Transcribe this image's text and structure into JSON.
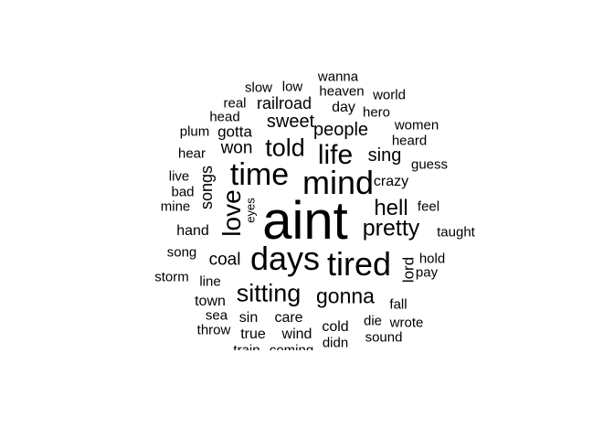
{
  "words": [
    {
      "text": "aint",
      "vertical": false
    },
    {
      "text": "mind",
      "vertical": false
    },
    {
      "text": "days",
      "vertical": false
    },
    {
      "text": "tired",
      "vertical": false
    },
    {
      "text": "time",
      "vertical": false
    },
    {
      "text": "life",
      "vertical": false
    },
    {
      "text": "love",
      "vertical": true
    },
    {
      "text": "told",
      "vertical": false
    },
    {
      "text": "pretty",
      "vertical": false
    },
    {
      "text": "sitting",
      "vertical": false
    },
    {
      "text": "gonna",
      "vertical": false
    },
    {
      "text": "hell",
      "vertical": false
    },
    {
      "text": "people",
      "vertical": false
    },
    {
      "text": "sing",
      "vertical": false
    },
    {
      "text": "sweet",
      "vertical": false
    },
    {
      "text": "won",
      "vertical": false
    },
    {
      "text": "songs",
      "vertical": true
    },
    {
      "text": "coal",
      "vertical": false
    },
    {
      "text": "railroad",
      "vertical": false
    },
    {
      "text": "gotta",
      "vertical": false
    },
    {
      "text": "lord",
      "vertical": true
    },
    {
      "text": "crazy",
      "vertical": false
    },
    {
      "text": "hand",
      "vertical": false
    },
    {
      "text": "town",
      "vertical": false
    },
    {
      "text": "care",
      "vertical": false
    },
    {
      "text": "cold",
      "vertical": false
    },
    {
      "text": "wind",
      "vertical": false
    },
    {
      "text": "true",
      "vertical": false
    },
    {
      "text": "sin",
      "vertical": false
    },
    {
      "text": "day",
      "vertical": false
    },
    {
      "text": "line",
      "vertical": false
    },
    {
      "text": "song",
      "vertical": false
    },
    {
      "text": "storm",
      "vertical": false
    },
    {
      "text": "slow",
      "vertical": false
    },
    {
      "text": "low",
      "vertical": false
    },
    {
      "text": "wanna",
      "vertical": false
    },
    {
      "text": "heaven",
      "vertical": false
    },
    {
      "text": "world",
      "vertical": false
    },
    {
      "text": "real",
      "vertical": false
    },
    {
      "text": "head",
      "vertical": false
    },
    {
      "text": "hero",
      "vertical": false
    },
    {
      "text": "women",
      "vertical": false
    },
    {
      "text": "plum",
      "vertical": false
    },
    {
      "text": "heard",
      "vertical": false
    },
    {
      "text": "hear",
      "vertical": false
    },
    {
      "text": "guess",
      "vertical": false
    },
    {
      "text": "live",
      "vertical": false
    },
    {
      "text": "bad",
      "vertical": false
    },
    {
      "text": "mine",
      "vertical": false
    },
    {
      "text": "eyes",
      "vertical": true
    },
    {
      "text": "feel",
      "vertical": false
    },
    {
      "text": "taught",
      "vertical": false
    },
    {
      "text": "hold",
      "vertical": false
    },
    {
      "text": "pay",
      "vertical": false
    },
    {
      "text": "fall",
      "vertical": false
    },
    {
      "text": "sea",
      "vertical": false
    },
    {
      "text": "die",
      "vertical": false
    },
    {
      "text": "wrote",
      "vertical": false
    },
    {
      "text": "throw",
      "vertical": false
    },
    {
      "text": "sound",
      "vertical": false
    },
    {
      "text": "didn",
      "vertical": false
    },
    {
      "text": "train",
      "vertical": false
    },
    {
      "text": "coming",
      "vertical": false
    }
  ]
}
